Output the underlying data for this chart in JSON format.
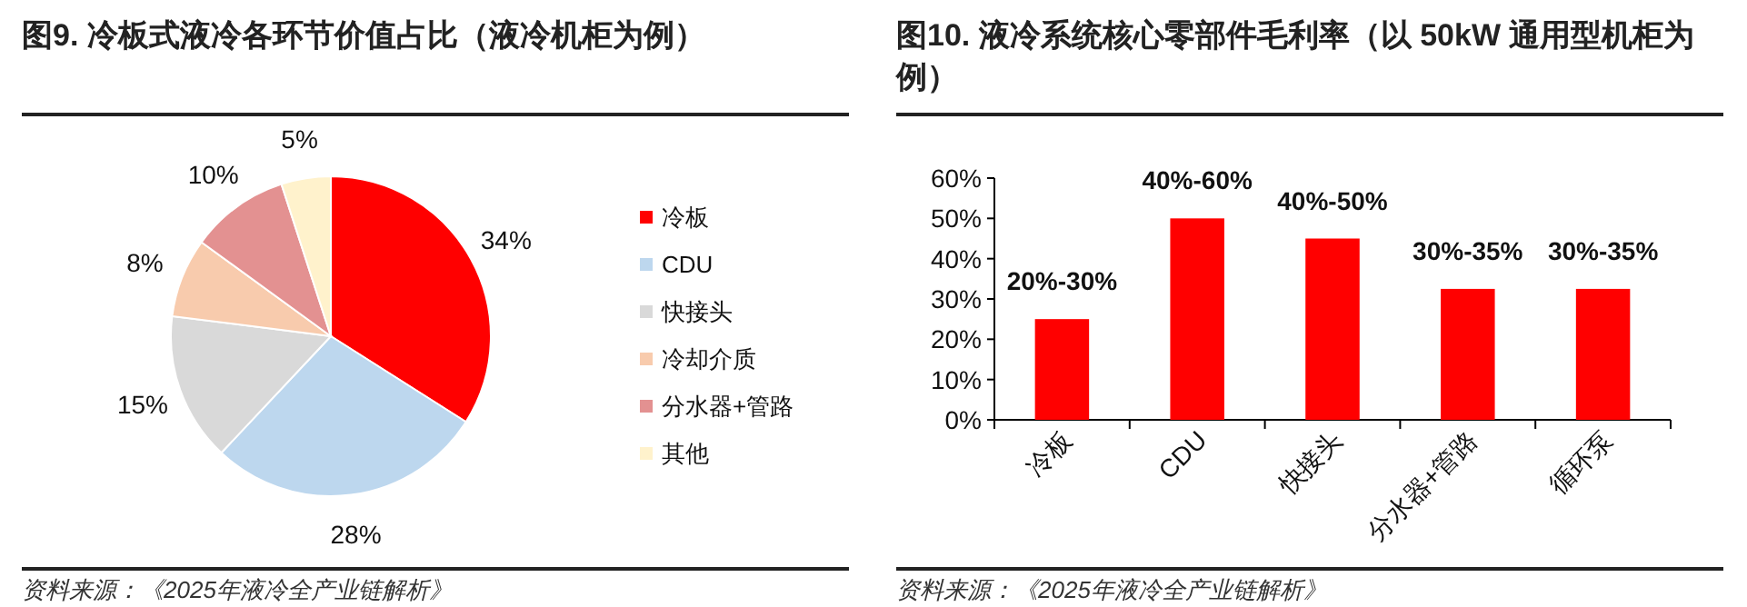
{
  "chart_data": [
    {
      "type": "pie",
      "title": "图9. 冷板式液冷各环节价值占比（液冷机柜为例）",
      "categories": [
        "冷板",
        "CDU",
        "快接头",
        "冷却介质",
        "分水器+管路",
        "其他"
      ],
      "values": [
        34,
        28,
        15,
        8,
        10,
        5
      ],
      "value_labels": [
        "34%",
        "28%",
        "15%",
        "8%",
        "10%",
        "5%"
      ],
      "colors": [
        "#ff0000",
        "#bdd7ee",
        "#d9d9d9",
        "#f8cbad",
        "#e39191",
        "#fff2cc"
      ],
      "legend": "right",
      "annotations": [
        "资料来源：《2025年液冷全产业链解析》"
      ]
    },
    {
      "type": "bar",
      "title": "图10. 液冷系统核心零部件毛利率（以 50kW 通用型机柜为例）",
      "categories": [
        "冷板",
        "CDU",
        "快接头",
        "分水器+管路",
        "循环泵"
      ],
      "values": [
        25,
        50,
        45,
        32.5,
        32.5
      ],
      "color": "#ff0000",
      "ylim": [
        0,
        60
      ],
      "yticks": [
        {
          "value": 0,
          "label": "0%"
        },
        {
          "value": 10,
          "label": "10%"
        },
        {
          "value": 20,
          "label": "20%"
        },
        {
          "value": 30,
          "label": "30%"
        },
        {
          "value": 40,
          "label": "40%"
        },
        {
          "value": 50,
          "label": "50%"
        },
        {
          "value": 60,
          "label": "60%"
        }
      ],
      "annotations": [
        "资料来源：《2025年液冷全产业链解析》",
        {
          "text": "20%-30%",
          "x": "冷板",
          "y": 25
        },
        {
          "text": "40%-60%",
          "x": "CDU",
          "y": 50
        },
        {
          "text": "40%-50%",
          "x": "快接头",
          "y": 45
        },
        {
          "text": "30%-35%",
          "x": "分水器+管路",
          "y": 32.5
        },
        {
          "text": "30%-35%",
          "x": "循环泵",
          "y": 32.5
        }
      ]
    }
  ]
}
